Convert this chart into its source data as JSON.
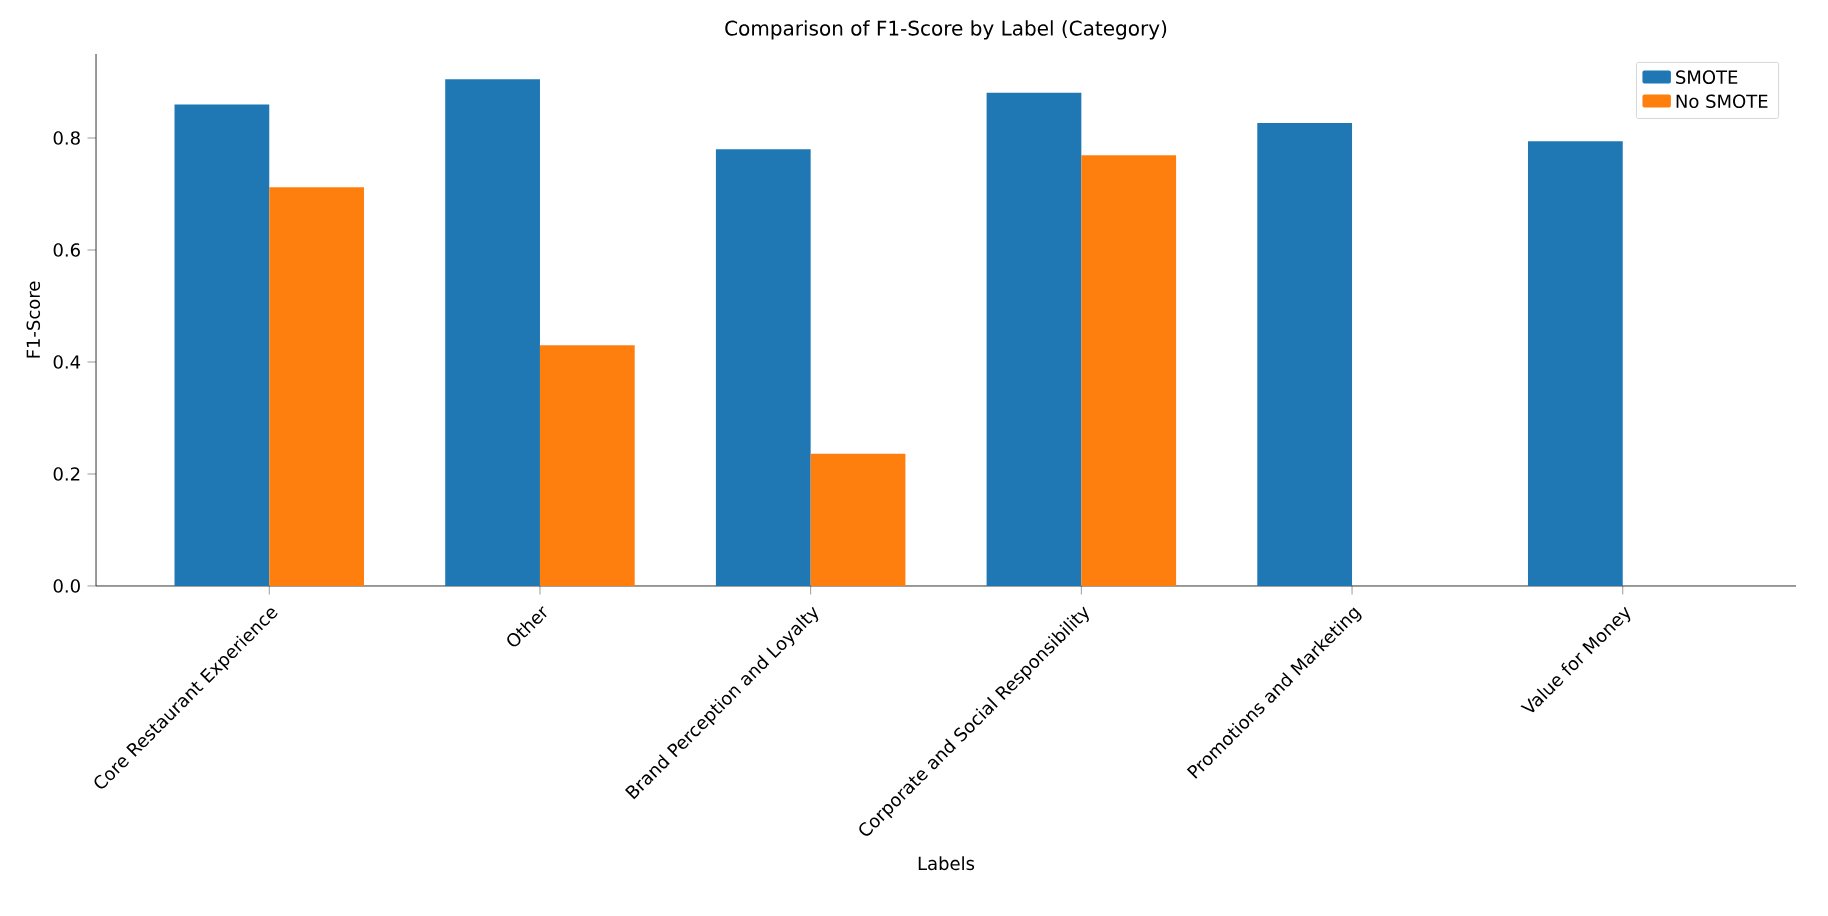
{
  "chart_data": {
    "type": "bar",
    "title": "Comparison of F1-Score by Label (Category)",
    "xlabel": "Labels",
    "ylabel": "F1-Score",
    "categories": [
      "Core Restaurant Experience",
      "Other",
      "Brand Perception and Loyalty",
      "Corporate and Social Responsibility",
      "Promotions and Marketing",
      "Value for Money"
    ],
    "series": [
      {
        "name": "SMOTE",
        "color": "#1f77b4",
        "values": [
          0.86,
          0.905,
          0.78,
          0.881,
          0.827,
          0.794
        ]
      },
      {
        "name": "No SMOTE",
        "color": "#ff7f0e",
        "values": [
          0.712,
          0.43,
          0.236,
          0.769,
          0,
          0
        ]
      }
    ],
    "ylim": [
      0,
      0.95
    ],
    "yticks": [
      {
        "value": 0,
        "label": "0.0"
      },
      0.2,
      0.4,
      0.6,
      0.8
    ],
    "grid": false,
    "legend": "top right"
  }
}
